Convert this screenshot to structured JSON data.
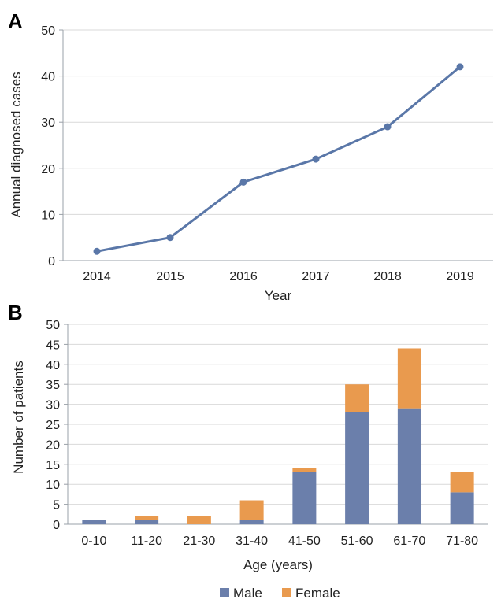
{
  "panels": [
    {
      "label": "A",
      "chart_data": {
        "type": "line",
        "x": [
          "2014",
          "2015",
          "2016",
          "2017",
          "2018",
          "2019"
        ],
        "series": [
          {
            "values": [
              2,
              5,
              17,
              22,
              29,
              42
            ],
            "color": "#5a77a8"
          }
        ],
        "xlabel": "Year",
        "ylabel": "Annual diagnosed cases",
        "ylim": [
          0,
          50
        ],
        "yticks": [
          "0",
          "10",
          "20",
          "30",
          "40",
          "50"
        ],
        "grid": "horizontal"
      }
    },
    {
      "label": "B",
      "chart_data": {
        "type": "bar",
        "stacked": true,
        "categories": [
          "0-10",
          "11-20",
          "21-30",
          "31-40",
          "41-50",
          "51-60",
          "61-70",
          "71-80"
        ],
        "series": [
          {
            "name": "Male",
            "values": [
              1,
              1,
              0,
              1,
              13,
              28,
              29,
              8
            ],
            "color": "#6b7fab"
          },
          {
            "name": "Female",
            "values": [
              0,
              1,
              2,
              5,
              1,
              7,
              15,
              5
            ],
            "color": "#e99a4e"
          }
        ],
        "xlabel": "Age (years)",
        "ylabel": "Number of patients",
        "ylim": [
          0,
          50
        ],
        "yticks": [
          "0",
          "5",
          "10",
          "15",
          "20",
          "25",
          "30",
          "35",
          "40",
          "45",
          "50"
        ],
        "grid": "horizontal",
        "legend": "bottom-center"
      }
    }
  ]
}
